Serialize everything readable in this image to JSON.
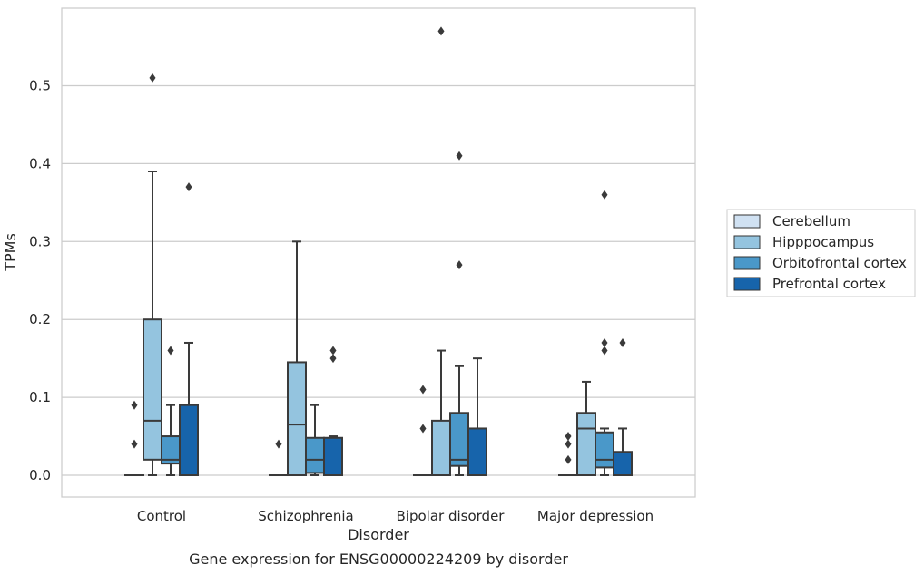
{
  "chart_data": {
    "type": "box",
    "title": "",
    "caption": "Gene expression for ENSG00000224209 by disorder",
    "xlabel": "Disorder",
    "ylabel": "TPMs",
    "ylim": [
      -0.028,
      0.6
    ],
    "yticks": [
      0.0,
      0.1,
      0.2,
      0.3,
      0.4,
      0.5
    ],
    "ytick_labels": [
      "0.0",
      "0.1",
      "0.2",
      "0.3",
      "0.4",
      "0.5"
    ],
    "grid": "horizontal",
    "legend_position": "right",
    "categories": [
      "Control",
      "Schizophrenia",
      "Bipolar disorder",
      "Major depression"
    ],
    "series": [
      {
        "name": "Cerebellum",
        "color": "#d0e1f2",
        "boxes": [
          {
            "whisker_low": 0.0,
            "q1": 0.0,
            "median": 0.0,
            "q3": 0.0,
            "whisker_high": 0.0,
            "outliers": [
              0.04,
              0.09
            ]
          },
          {
            "whisker_low": 0.0,
            "q1": 0.0,
            "median": 0.0,
            "q3": 0.0,
            "whisker_high": 0.0,
            "outliers": [
              0.04
            ]
          },
          {
            "whisker_low": 0.0,
            "q1": 0.0,
            "median": 0.0,
            "q3": 0.0,
            "whisker_high": 0.0,
            "outliers": [
              0.06,
              0.11
            ]
          },
          {
            "whisker_low": 0.0,
            "q1": 0.0,
            "median": 0.0,
            "q3": 0.0,
            "whisker_high": 0.0,
            "outliers": [
              0.02,
              0.04,
              0.05
            ]
          }
        ]
      },
      {
        "name": "Hipppocampus",
        "color": "#94c4df",
        "boxes": [
          {
            "whisker_low": 0.0,
            "q1": 0.02,
            "median": 0.07,
            "q3": 0.2,
            "whisker_high": 0.39,
            "outliers": [
              0.51
            ]
          },
          {
            "whisker_low": 0.0,
            "q1": 0.0,
            "median": 0.065,
            "q3": 0.145,
            "whisker_high": 0.3,
            "outliers": []
          },
          {
            "whisker_low": 0.0,
            "q1": 0.0,
            "median": 0.0,
            "q3": 0.07,
            "whisker_high": 0.16,
            "outliers": [
              0.57
            ]
          },
          {
            "whisker_low": 0.0,
            "q1": 0.0,
            "median": 0.06,
            "q3": 0.08,
            "whisker_high": 0.12,
            "outliers": []
          }
        ]
      },
      {
        "name": "Orbitofrontal cortex",
        "color": "#4a98c9",
        "boxes": [
          {
            "whisker_low": 0.0,
            "q1": 0.015,
            "median": 0.02,
            "q3": 0.05,
            "whisker_high": 0.09,
            "outliers": [
              0.16
            ]
          },
          {
            "whisker_low": 0.0,
            "q1": 0.003,
            "median": 0.02,
            "q3": 0.048,
            "whisker_high": 0.09,
            "outliers": []
          },
          {
            "whisker_low": 0.0,
            "q1": 0.012,
            "median": 0.02,
            "q3": 0.08,
            "whisker_high": 0.14,
            "outliers": [
              0.27,
              0.41
            ]
          },
          {
            "whisker_low": 0.0,
            "q1": 0.01,
            "median": 0.02,
            "q3": 0.055,
            "whisker_high": 0.06,
            "outliers": [
              0.16,
              0.17,
              0.36
            ]
          }
        ]
      },
      {
        "name": "Prefrontal cortex",
        "color": "#1764ab",
        "boxes": [
          {
            "whisker_low": 0.0,
            "q1": 0.0,
            "median": 0.0,
            "q3": 0.09,
            "whisker_high": 0.17,
            "outliers": [
              0.37
            ]
          },
          {
            "whisker_low": 0.0,
            "q1": 0.0,
            "median": 0.0,
            "q3": 0.048,
            "whisker_high": 0.05,
            "outliers": [
              0.15,
              0.16
            ]
          },
          {
            "whisker_low": 0.0,
            "q1": 0.0,
            "median": 0.0,
            "q3": 0.06,
            "whisker_high": 0.15,
            "outliers": []
          },
          {
            "whisker_low": 0.0,
            "q1": 0.0,
            "median": 0.0,
            "q3": 0.03,
            "whisker_high": 0.06,
            "outliers": [
              0.17
            ]
          }
        ]
      }
    ]
  }
}
